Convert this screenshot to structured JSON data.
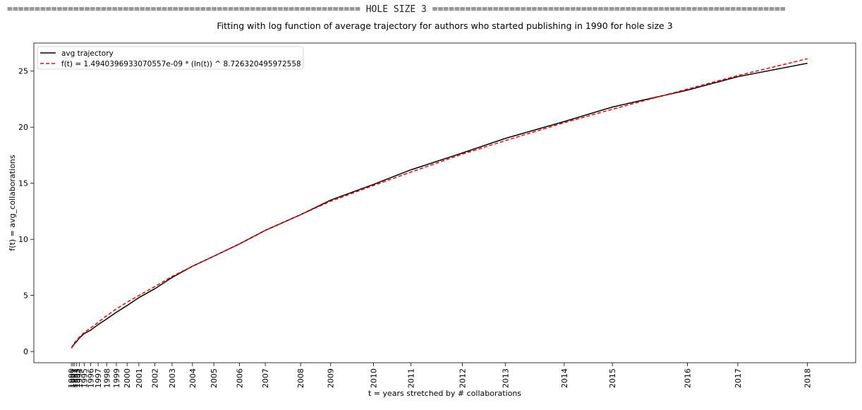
{
  "header": {
    "banner": "================================================================ HOLE SIZE 3 ================================================================"
  },
  "chart_data": {
    "type": "line",
    "title": "Fitting with log function of average trajectory for authors who started publishing in 1990 for hole size 3",
    "xlabel": "t = years stretched by # collaborations",
    "ylabel": "f(t) = avg_collaborations",
    "ylim": [
      -1,
      27.5
    ],
    "xlim": [
      -3.5,
      73.2
    ],
    "y_ticks": [
      0,
      5,
      10,
      15,
      20,
      25
    ],
    "x_ticks": [
      {
        "t": 0.0,
        "label": "1990"
      },
      {
        "t": 0.15,
        "label": "1991"
      },
      {
        "t": 0.3,
        "label": "1992"
      },
      {
        "t": 0.5,
        "label": "1993"
      },
      {
        "t": 0.75,
        "label": "1994"
      },
      {
        "t": 1.2,
        "label": "1995"
      },
      {
        "t": 1.8,
        "label": "1996"
      },
      {
        "t": 2.5,
        "label": "1997"
      },
      {
        "t": 3.3,
        "label": "1998"
      },
      {
        "t": 4.2,
        "label": "1999"
      },
      {
        "t": 5.2,
        "label": "2000"
      },
      {
        "t": 6.3,
        "label": "2001"
      },
      {
        "t": 7.8,
        "label": "2002"
      },
      {
        "t": 9.4,
        "label": "2003"
      },
      {
        "t": 11.3,
        "label": "2004"
      },
      {
        "t": 13.3,
        "label": "2005"
      },
      {
        "t": 15.7,
        "label": "2006"
      },
      {
        "t": 18.1,
        "label": "2007"
      },
      {
        "t": 21.4,
        "label": "2008"
      },
      {
        "t": 24.2,
        "label": "2009"
      },
      {
        "t": 28.2,
        "label": "2010"
      },
      {
        "t": 31.7,
        "label": "2011"
      },
      {
        "t": 36.5,
        "label": "2012"
      },
      {
        "t": 40.5,
        "label": "2013"
      },
      {
        "t": 46.0,
        "label": "2014"
      },
      {
        "t": 50.5,
        "label": "2015"
      },
      {
        "t": 57.5,
        "label": "2016"
      },
      {
        "t": 62.2,
        "label": "2017"
      },
      {
        "t": 68.7,
        "label": "2018"
      }
    ],
    "series": [
      {
        "name": "avg trajectory",
        "color": "#000000",
        "style": "solid",
        "x": [
          0.0,
          0.15,
          0.3,
          0.5,
          0.75,
          1.2,
          1.8,
          2.5,
          3.3,
          4.2,
          5.2,
          6.3,
          7.8,
          9.4,
          11.3,
          13.3,
          15.7,
          18.1,
          21.4,
          24.2,
          28.2,
          31.7,
          36.5,
          40.5,
          46.0,
          50.5,
          57.5,
          62.2,
          68.7
        ],
        "y": [
          0.3,
          0.5,
          0.7,
          0.9,
          1.2,
          1.6,
          1.9,
          2.4,
          2.9,
          3.5,
          4.1,
          4.8,
          5.6,
          6.6,
          7.6,
          8.5,
          9.6,
          10.8,
          12.2,
          13.5,
          14.9,
          16.2,
          17.7,
          19.0,
          20.5,
          21.8,
          23.3,
          24.5,
          25.7
        ]
      },
      {
        "name": "f(t) = 1.4940396933070557e-09 * (ln(t)) ^ 8.726320495972558",
        "color": "#ff0000",
        "style": "dashed",
        "x": [
          0.0,
          0.15,
          0.3,
          0.5,
          0.75,
          1.2,
          1.8,
          2.5,
          3.3,
          4.2,
          5.2,
          6.3,
          7.8,
          9.4,
          11.3,
          13.3,
          15.7,
          18.1,
          21.4,
          24.2,
          28.2,
          31.7,
          36.5,
          40.5,
          46.0,
          50.5,
          57.5,
          62.2,
          68.7
        ],
        "y": [
          0.3,
          0.6,
          0.8,
          1.0,
          1.3,
          1.7,
          2.1,
          2.6,
          3.2,
          3.8,
          4.4,
          5.0,
          5.8,
          6.7,
          7.6,
          8.5,
          9.6,
          10.8,
          12.2,
          13.4,
          14.8,
          16.0,
          17.6,
          18.8,
          20.4,
          21.6,
          23.4,
          24.6,
          26.1
        ]
      }
    ],
    "legend": "upper-left"
  }
}
